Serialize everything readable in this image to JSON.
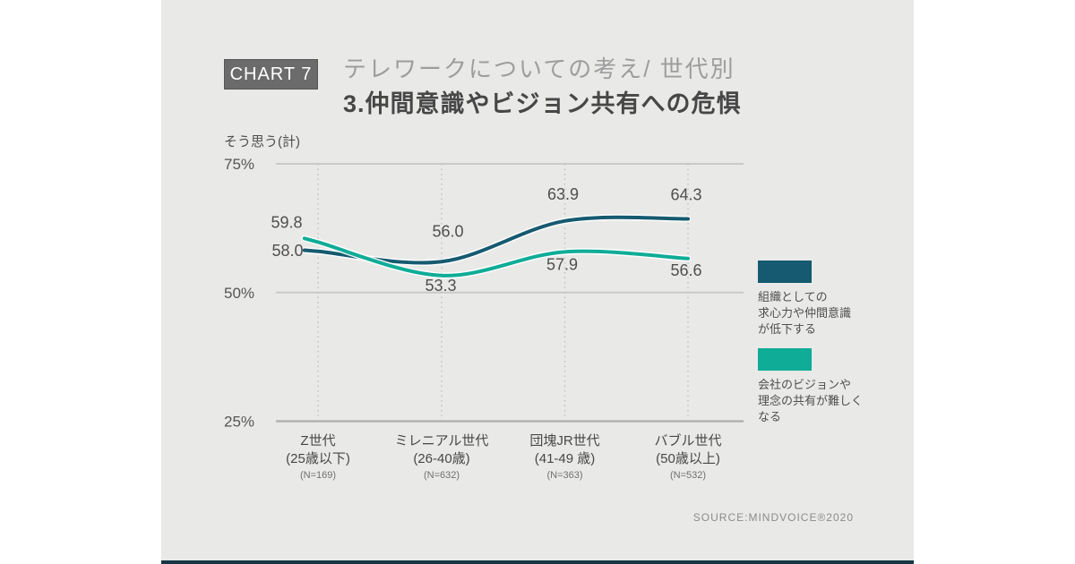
{
  "page": {
    "background": "#ffffff",
    "card_background": "#e9e9e8",
    "bottom_bar_color": "#173645"
  },
  "header": {
    "badge": "CHART 7",
    "subtitle": "テレワークについての考え/ 世代別",
    "title": "3.仲間意識やビジョン共有への危惧"
  },
  "chart_data": {
    "type": "line",
    "y_axis_title": "そう思う(計)",
    "ylim": [
      25,
      75
    ],
    "grid": "horizontal gridlines at 25/50/75, dotted vertical line per category",
    "legend_position": "right",
    "y_ticks": [
      {
        "value": 75,
        "label": "75%"
      },
      {
        "value": 50,
        "label": "50%"
      },
      {
        "value": 25,
        "label": "25%"
      }
    ],
    "categories": [
      {
        "name": "Z世代",
        "age": "(25歳以下)",
        "n": "(N=169)"
      },
      {
        "name": "ミレニアル世代",
        "age": "(26-40歳)",
        "n": "(N=632)"
      },
      {
        "name": "団塊JR世代",
        "age": "(41-49 歳)",
        "n": "(N=363)"
      },
      {
        "name": "バブル世代",
        "age": "(50歳以上)",
        "n": "(N=532)"
      }
    ],
    "series": [
      {
        "name": "組織としての求心力や仲間意識が低下する",
        "color": "#155a70",
        "values": [
          58.0,
          56.0,
          63.9,
          64.3
        ],
        "label_offsets": [
          [
            -34,
            -1
          ],
          [
            7,
            -34
          ],
          [
            -2,
            -30
          ],
          [
            -2,
            -27
          ]
        ]
      },
      {
        "name": "会社のビジョンや理念の共有が難しくなる",
        "color": "#0fac97",
        "values": [
          59.8,
          53.3,
          57.9,
          56.6
        ],
        "label_offsets": [
          [
            -35,
            -22
          ],
          [
            -1,
            11
          ],
          [
            -3,
            14
          ],
          [
            -2,
            13
          ]
        ]
      }
    ]
  },
  "legend": {
    "items": [
      {
        "color": "#155a70",
        "label": "組織としての\n求心力や仲間意識\nが低下する"
      },
      {
        "color": "#0fac97",
        "label": "会社のビジョンや\n理念の共有が難しく\nなる"
      }
    ]
  },
  "source": "SOURCE:MINDVOICE®2020"
}
